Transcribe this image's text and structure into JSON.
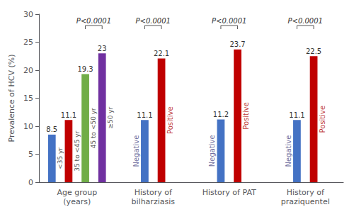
{
  "chart_data": {
    "type": "bar",
    "ylabel": "Prevalence of HCV (%)",
    "categories": [
      "Age group\n(years)",
      "History of\nbilharziasis",
      "History of PAT",
      "History of\npraziquentel"
    ],
    "groups": [
      {
        "values": [
          8.5,
          11.1,
          19.3,
          23.0
        ],
        "colors": [
          "#4472C4",
          "#C00000",
          "#70AD47",
          "#7030A0"
        ],
        "bar_names": [
          "<35 yr",
          "35 to <45 yr",
          "45 to <50 yr",
          "≥50 yr"
        ],
        "pvalue": "P<0.0001",
        "pvalue_bars": [
          2,
          3
        ]
      },
      {
        "values": [
          11.1,
          22.1
        ],
        "colors": [
          "#4472C4",
          "#C00000"
        ],
        "neg_label": "Negative",
        "pos_label": "Positive",
        "pvalue": "P<0.0001",
        "pvalue_bars": [
          0,
          1
        ]
      },
      {
        "values": [
          11.2,
          23.7
        ],
        "colors": [
          "#4472C4",
          "#C00000"
        ],
        "neg_label": "Negative",
        "pos_label": "Positive",
        "pvalue": "P<0.0001",
        "pvalue_bars": [
          0,
          1
        ]
      },
      {
        "values": [
          11.1,
          22.5
        ],
        "colors": [
          "#4472C4",
          "#C00000"
        ],
        "neg_label": "Negative",
        "pos_label": "Positive",
        "pvalue": "P<0.0001",
        "pvalue_bars": [
          0,
          1
        ]
      }
    ],
    "ylim": [
      0,
      30
    ],
    "yticks": [
      0,
      5,
      10,
      15,
      20,
      25,
      30
    ],
    "grid": false,
    "data_labels": true
  }
}
